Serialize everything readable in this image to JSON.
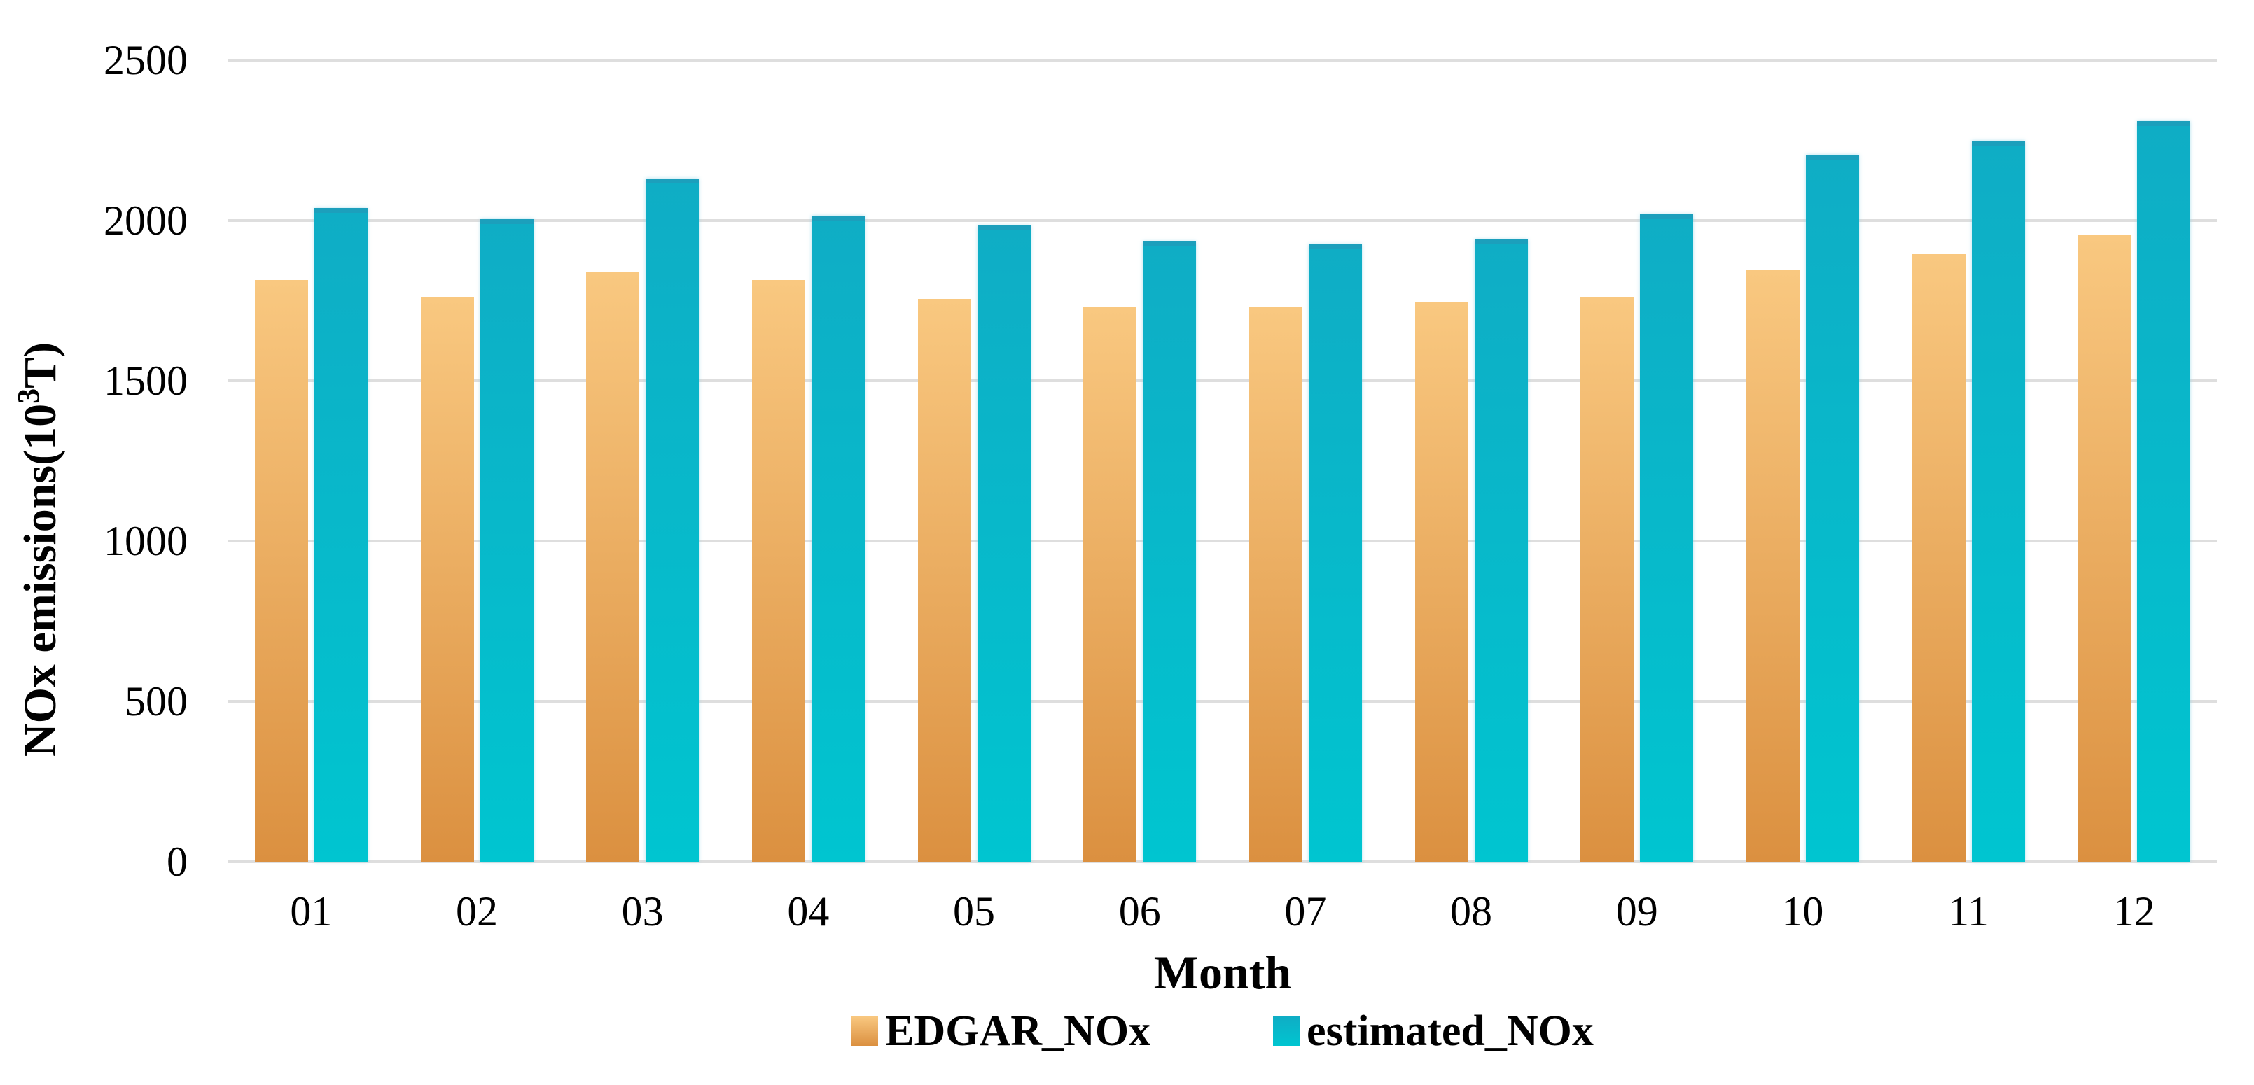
{
  "chart_data": {
    "type": "bar",
    "title": "",
    "xlabel": "Month",
    "ylabel": "NOx emissions(10³T)",
    "ylabel_parts": {
      "pre": "NOx emissions(10",
      "sup": "3",
      "post": "T)"
    },
    "categories": [
      "01",
      "02",
      "03",
      "04",
      "05",
      "06",
      "07",
      "08",
      "09",
      "10",
      "11",
      "12"
    ],
    "series": [
      {
        "name": "EDGAR_NOx",
        "values": [
          1815,
          1760,
          1840,
          1815,
          1755,
          1730,
          1730,
          1745,
          1760,
          1845,
          1895,
          1955
        ]
      },
      {
        "name": "estimated_NOx",
        "values": [
          2040,
          2005,
          2130,
          2015,
          1985,
          1935,
          1925,
          1940,
          2020,
          2205,
          2250,
          2310
        ]
      }
    ],
    "ylim": [
      0,
      2500
    ],
    "yticks": [
      0,
      500,
      1000,
      1500,
      2000,
      2500
    ],
    "grid": true,
    "legend_position": "bottom"
  },
  "colors": {
    "background": "#ffffff",
    "text": "#000000",
    "gridline": "#dedede",
    "edgar_top": "#f9c880",
    "edgar_bottom": "#db9040",
    "estimated_top": "#0fadc5",
    "estimated_bottom": "#00c5d0",
    "estimated_cap": "#1c9fbc"
  }
}
